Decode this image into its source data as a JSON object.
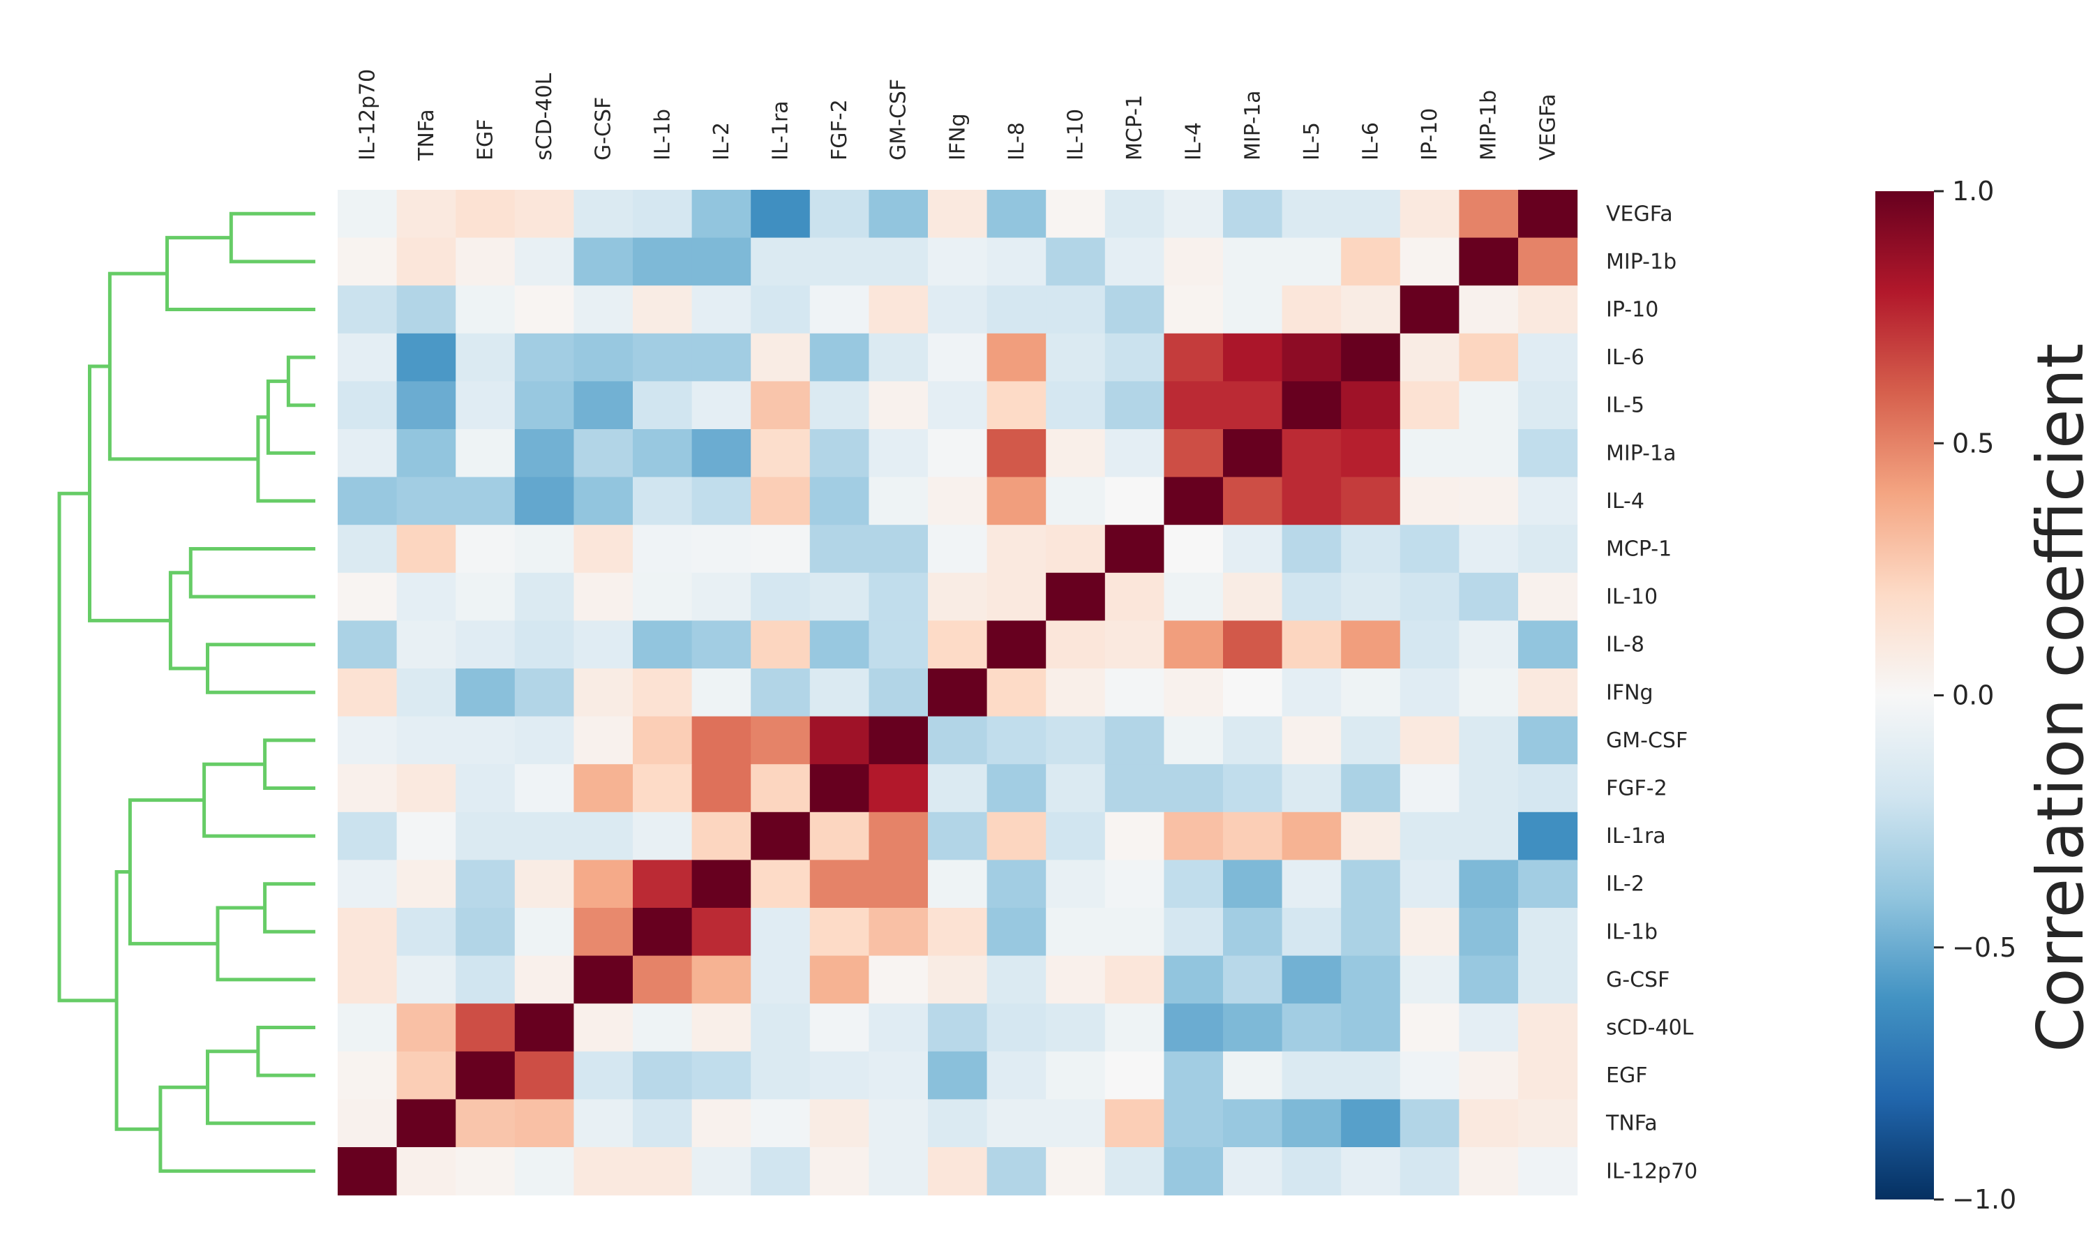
{
  "chart_data": {
    "type": "heatmap",
    "title": "",
    "columns": [
      "IL-12p70",
      "TNFa",
      "EGF",
      "sCD-40L",
      "G-CSF",
      "IL-1b",
      "IL-2",
      "IL-1ra",
      "FGF-2",
      "GM-CSF",
      "IFNg",
      "IL-8",
      "IL-10",
      "MCP-1",
      "IL-4",
      "MIP-1a",
      "IL-5",
      "IL-6",
      "IP-10",
      "MIP-1b",
      "VEGFa"
    ],
    "rows": [
      "VEGFa",
      "MIP-1b",
      "IP-10",
      "IL-6",
      "IL-5",
      "MIP-1a",
      "IL-4",
      "MCP-1",
      "IL-10",
      "IL-8",
      "IFNg",
      "GM-CSF",
      "FGF-2",
      "IL-1ra",
      "IL-2",
      "IL-1b",
      "G-CSF",
      "sCD-40L",
      "EGF",
      "TNFa",
      "IL-12p70"
    ],
    "values": [
      [
        -0.05,
        0.1,
        0.15,
        0.12,
        -0.15,
        -0.18,
        -0.4,
        -0.62,
        -0.22,
        -0.4,
        0.1,
        -0.4,
        0.02,
        -0.15,
        -0.08,
        -0.28,
        -0.15,
        -0.15,
        0.1,
        0.5,
        1.0
      ],
      [
        0.03,
        0.12,
        0.04,
        -0.08,
        -0.4,
        -0.45,
        -0.45,
        -0.15,
        -0.15,
        -0.15,
        -0.07,
        -0.1,
        -0.3,
        -0.1,
        0.04,
        -0.05,
        -0.05,
        0.22,
        0.03,
        1.0,
        0.5
      ],
      [
        -0.22,
        -0.3,
        -0.05,
        0.02,
        -0.08,
        0.08,
        -0.1,
        -0.18,
        -0.04,
        0.12,
        -0.12,
        -0.18,
        -0.18,
        -0.3,
        0.03,
        -0.05,
        0.12,
        0.08,
        1.0,
        0.04,
        0.1
      ],
      [
        -0.1,
        -0.58,
        -0.15,
        -0.35,
        -0.38,
        -0.35,
        -0.35,
        0.08,
        -0.38,
        -0.15,
        -0.04,
        0.42,
        -0.15,
        -0.22,
        0.7,
        0.82,
        0.9,
        1.0,
        0.08,
        0.22,
        -0.12
      ],
      [
        -0.18,
        -0.5,
        -0.12,
        -0.38,
        -0.48,
        -0.2,
        -0.1,
        0.28,
        -0.15,
        0.04,
        -0.1,
        0.2,
        -0.18,
        -0.3,
        0.75,
        0.75,
        1.0,
        0.85,
        0.15,
        -0.05,
        -0.15
      ],
      [
        -0.1,
        -0.4,
        -0.05,
        -0.48,
        -0.3,
        -0.38,
        -0.5,
        0.18,
        -0.3,
        -0.1,
        -0.02,
        0.62,
        0.06,
        -0.1,
        0.65,
        1.0,
        0.75,
        0.78,
        -0.05,
        -0.05,
        -0.25
      ],
      [
        -0.38,
        -0.35,
        -0.35,
        -0.52,
        -0.4,
        -0.2,
        -0.25,
        0.25,
        -0.35,
        -0.05,
        0.04,
        0.42,
        -0.05,
        0.0,
        1.0,
        0.65,
        0.75,
        0.7,
        0.05,
        0.04,
        -0.1
      ],
      [
        -0.15,
        0.22,
        -0.02,
        -0.05,
        0.12,
        -0.04,
        -0.03,
        -0.02,
        -0.3,
        -0.3,
        -0.03,
        0.1,
        0.12,
        1.0,
        0.0,
        -0.1,
        -0.28,
        -0.18,
        -0.25,
        -0.1,
        -0.15
      ],
      [
        0.02,
        -0.1,
        -0.05,
        -0.15,
        0.04,
        -0.05,
        -0.08,
        -0.18,
        -0.15,
        -0.25,
        0.08,
        0.1,
        1.0,
        0.12,
        -0.05,
        0.08,
        -0.2,
        -0.15,
        -0.2,
        -0.28,
        0.04
      ],
      [
        -0.32,
        -0.08,
        -0.12,
        -0.18,
        -0.12,
        -0.4,
        -0.35,
        0.22,
        -0.38,
        -0.25,
        0.2,
        1.0,
        0.12,
        0.1,
        0.42,
        0.62,
        0.22,
        0.42,
        -0.18,
        -0.08,
        -0.4
      ],
      [
        0.15,
        -0.15,
        -0.42,
        -0.3,
        0.08,
        0.15,
        -0.05,
        -0.3,
        -0.15,
        -0.3,
        1.0,
        0.2,
        0.06,
        -0.02,
        0.04,
        0.0,
        -0.1,
        -0.05,
        -0.12,
        -0.05,
        0.1
      ],
      [
        -0.07,
        -0.1,
        -0.1,
        -0.12,
        0.04,
        0.25,
        0.55,
        0.5,
        0.85,
        1.0,
        -0.3,
        -0.25,
        -0.22,
        -0.3,
        -0.05,
        -0.15,
        0.04,
        -0.15,
        0.1,
        -0.15,
        -0.38
      ],
      [
        0.05,
        0.1,
        -0.12,
        -0.04,
        0.35,
        0.2,
        0.55,
        0.22,
        1.0,
        0.8,
        -0.15,
        -0.35,
        -0.15,
        -0.3,
        -0.3,
        -0.25,
        -0.15,
        -0.32,
        -0.04,
        -0.15,
        -0.18
      ],
      [
        -0.22,
        -0.02,
        -0.15,
        -0.15,
        -0.15,
        -0.08,
        0.22,
        1.0,
        0.22,
        0.5,
        -0.3,
        0.22,
        -0.2,
        0.02,
        0.3,
        0.25,
        0.35,
        0.08,
        -0.15,
        -0.15,
        -0.62
      ],
      [
        -0.07,
        0.06,
        -0.28,
        0.08,
        0.38,
        0.75,
        1.0,
        0.2,
        0.5,
        0.5,
        -0.05,
        -0.35,
        -0.08,
        -0.03,
        -0.25,
        -0.45,
        -0.1,
        -0.32,
        -0.12,
        -0.45,
        -0.35
      ],
      [
        0.12,
        -0.18,
        -0.3,
        -0.05,
        0.48,
        1.0,
        0.75,
        -0.12,
        0.2,
        0.3,
        0.15,
        -0.38,
        -0.05,
        -0.05,
        -0.18,
        -0.35,
        -0.18,
        -0.32,
        0.06,
        -0.42,
        -0.15
      ],
      [
        0.12,
        -0.08,
        -0.2,
        0.05,
        1.0,
        0.5,
        0.35,
        -0.12,
        0.35,
        0.02,
        0.08,
        -0.15,
        0.05,
        0.12,
        -0.4,
        -0.28,
        -0.48,
        -0.38,
        -0.08,
        -0.38,
        -0.15
      ],
      [
        -0.05,
        0.3,
        0.65,
        1.0,
        0.05,
        -0.05,
        0.06,
        -0.15,
        -0.03,
        -0.12,
        -0.28,
        -0.18,
        -0.15,
        -0.05,
        -0.5,
        -0.45,
        -0.35,
        -0.38,
        0.02,
        -0.1,
        0.1
      ],
      [
        0.03,
        0.25,
        1.0,
        0.65,
        -0.18,
        -0.28,
        -0.25,
        -0.15,
        -0.12,
        -0.1,
        -0.42,
        -0.12,
        -0.05,
        0.0,
        -0.35,
        -0.05,
        -0.15,
        -0.15,
        -0.04,
        0.04,
        0.1
      ],
      [
        0.04,
        1.0,
        0.28,
        0.3,
        -0.08,
        -0.18,
        0.04,
        -0.03,
        0.08,
        -0.08,
        -0.15,
        -0.08,
        -0.08,
        0.25,
        -0.35,
        -0.38,
        -0.45,
        -0.55,
        -0.3,
        0.1,
        0.08
      ],
      [
        1.0,
        0.05,
        0.03,
        -0.05,
        0.1,
        0.1,
        -0.08,
        -0.2,
        0.04,
        -0.08,
        0.12,
        -0.3,
        0.03,
        -0.15,
        -0.38,
        -0.1,
        -0.18,
        -0.1,
        -0.18,
        0.04,
        -0.04
      ]
    ],
    "colorbar": {
      "label": "Correlation coefficient",
      "ticks": [
        1.0,
        0.5,
        0.0,
        -0.5,
        -1.0
      ],
      "tick_labels": [
        "1.0",
        "0.5",
        "0.0",
        "−0.5",
        "−1.0"
      ],
      "range": [
        -1.0,
        1.0
      ],
      "colormap": [
        "#053061",
        "#2166ac",
        "#4393c3",
        "#92c5de",
        "#d1e5f0",
        "#f7f7f7",
        "#fddbc7",
        "#f4a582",
        "#d6604d",
        "#b2182b",
        "#67001f"
      ]
    },
    "dendrogram": {
      "side": "left",
      "color": "#66cc66",
      "links": [
        {
          "a": 0,
          "b": 1,
          "h": 0.25
        },
        {
          "a": "n0",
          "b": 2,
          "h": 0.44
        },
        {
          "a": 3,
          "b": 4,
          "h": 0.08
        },
        {
          "a": "n2",
          "b": 5,
          "h": 0.14
        },
        {
          "a": "n3",
          "b": 6,
          "h": 0.17
        },
        {
          "a": "n1",
          "b": "n4",
          "h": 0.61
        },
        {
          "a": 7,
          "b": 8,
          "h": 0.37
        },
        {
          "a": 9,
          "b": 10,
          "h": 0.32
        },
        {
          "a": "n6",
          "b": "n7",
          "h": 0.43
        },
        {
          "a": "n5",
          "b": "n8",
          "h": 0.67
        },
        {
          "a": 11,
          "b": 12,
          "h": 0.15
        },
        {
          "a": "n10",
          "b": 13,
          "h": 0.33
        },
        {
          "a": 14,
          "b": 15,
          "h": 0.15
        },
        {
          "a": "n12",
          "b": 16,
          "h": 0.29
        },
        {
          "a": "n11",
          "b": "n13",
          "h": 0.55
        },
        {
          "a": 17,
          "b": 18,
          "h": 0.17
        },
        {
          "a": "n15",
          "b": 19,
          "h": 0.32
        },
        {
          "a": "n16",
          "b": 20,
          "h": 0.46
        },
        {
          "a": "n14",
          "b": "n17",
          "h": 0.59
        },
        {
          "a": "n9",
          "b": "n18",
          "h": 0.76
        }
      ]
    }
  }
}
